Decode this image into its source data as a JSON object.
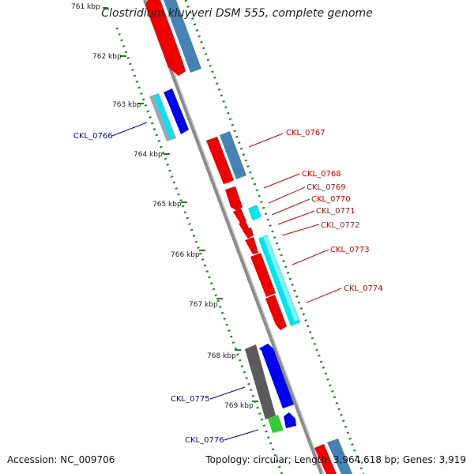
{
  "title": "Clostridium kluyveri DSM 555, complete genome",
  "accession": "Accession: NC_009706",
  "summary": "Topology: circular; Length: 3,964,618 bp; Genes: 3,919",
  "colors": {
    "red": "#ee0000",
    "steel": "#4682b4",
    "cyan": "#00e5ee",
    "blue": "#0000ee",
    "gray": "#5a5a5a",
    "green": "#33cc33",
    "backbone": "#8c8c8c",
    "tick": "#1a8a1a",
    "label_red": "#dd0000",
    "label_blue": "#0000cc"
  },
  "kbp_labels": [
    "761 kbp",
    "762 kbp",
    "763 kbp",
    "764 kbp",
    "765 kbp",
    "766 kbp",
    "767 kbp",
    "768 kbp",
    "769 kbp"
  ],
  "gene_labels_right": [
    "CKL_0767",
    "CKL_0768",
    "CKL_0769",
    "CKL_0770",
    "CKL_0771",
    "CKL_0772",
    "CKL_0773",
    "CKL_0774"
  ],
  "gene_labels_left": [
    "CKL_0766",
    "CKL_0775",
    "CKL_0776"
  ]
}
